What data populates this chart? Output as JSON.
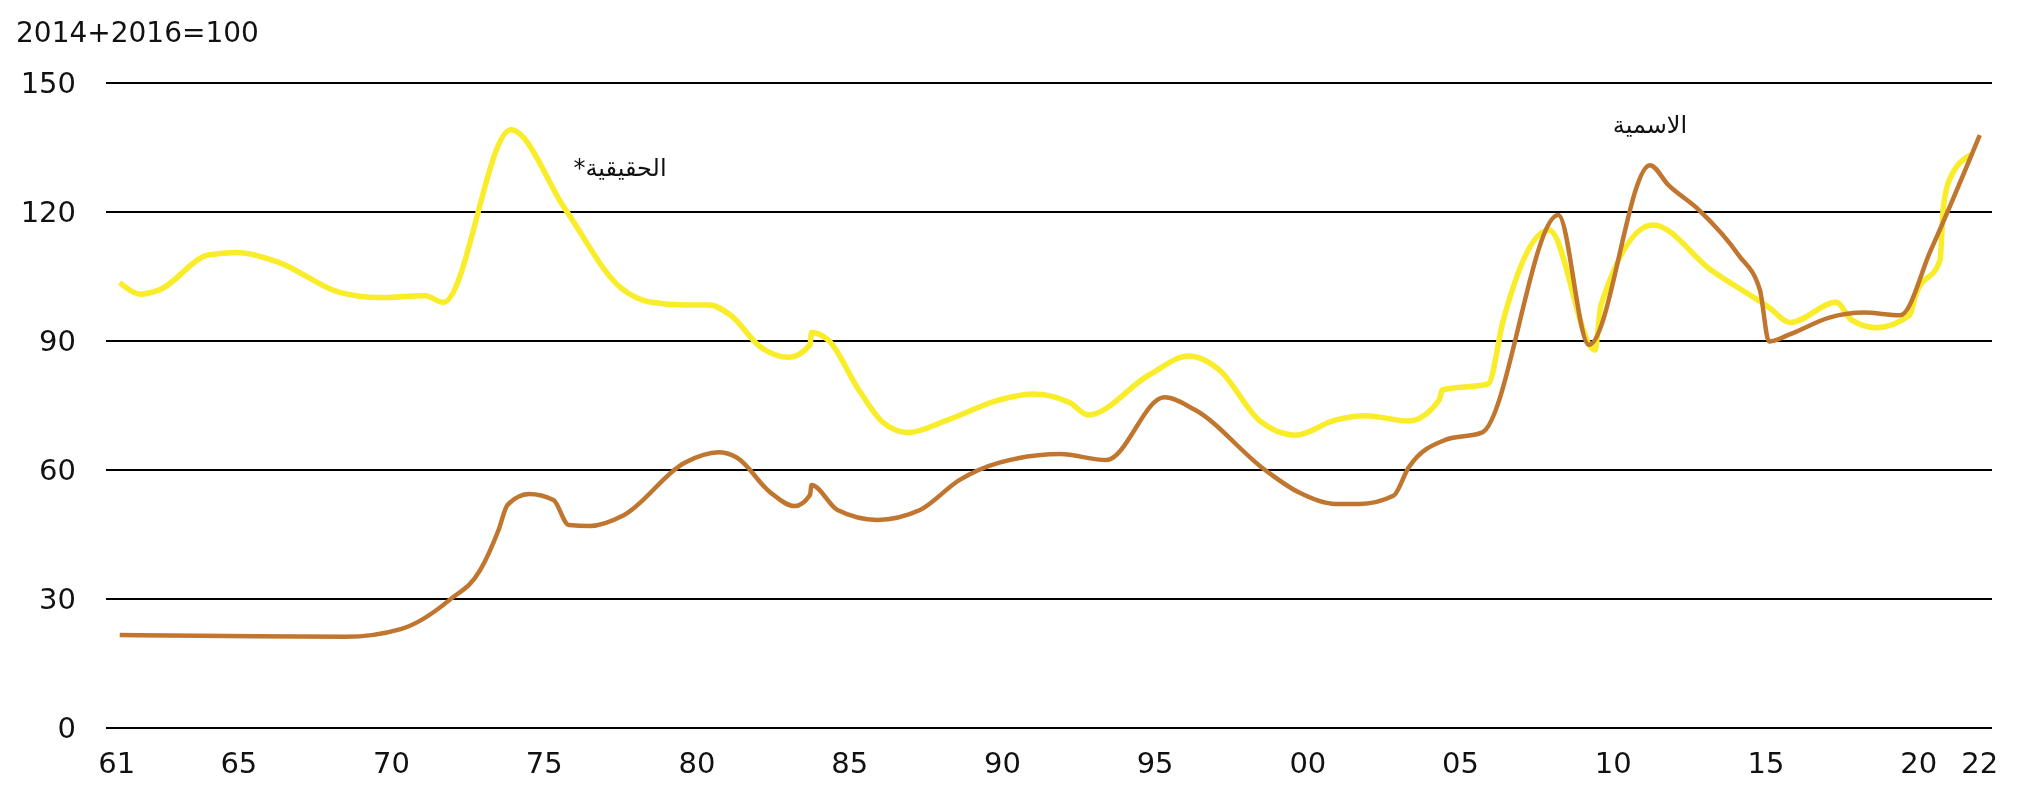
{
  "chart_data": {
    "type": "line",
    "ylabel": "2014+2016=100",
    "xlim": [
      1960.65,
      2022.4
    ],
    "ylim": [
      0,
      150
    ],
    "yticks": [
      0,
      30,
      60,
      90,
      120,
      150
    ],
    "xticks": [
      {
        "value": 1961,
        "label": "61"
      },
      {
        "value": 1965,
        "label": "65"
      },
      {
        "value": 1970,
        "label": "70"
      },
      {
        "value": 1975,
        "label": "75"
      },
      {
        "value": 1980,
        "label": "80"
      },
      {
        "value": 1985,
        "label": "85"
      },
      {
        "value": 1990,
        "label": "90"
      },
      {
        "value": 1995,
        "label": "95"
      },
      {
        "value": 2000,
        "label": "00"
      },
      {
        "value": 2005,
        "label": "05"
      },
      {
        "value": 2010,
        "label": "10"
      },
      {
        "value": 2015,
        "label": "15"
      },
      {
        "value": 2020,
        "label": "20"
      },
      {
        "value": 2022,
        "label": "22"
      }
    ],
    "grid": "y",
    "legend": false,
    "line_style": "solid",
    "marker": "none",
    "series": [
      {
        "name": "الحقيقية*",
        "color": "#f9ec28",
        "x": [
          1961.1,
          1961.8,
          1962.4,
          1964.0,
          1964.9,
          1966.3,
          1968.3,
          1969.6,
          1971.1,
          1971.7,
          1973.9,
          1975.7,
          1977.5,
          1978.5,
          1979.6,
          1980.4,
          1981.1,
          1982.1,
          1983.0,
          1983.7,
          1983.75,
          1984.3,
          1985.3,
          1986.1,
          1986.9,
          1988.2,
          1989.9,
          1991.0,
          1992.2,
          1992.8,
          1994.8,
          1996.1,
          1997.1,
          1998.4,
          1999.6,
          2000.9,
          2001.9,
          2003.3,
          2004.3,
          2004.4,
          2005.9,
          2006.4,
          2007.9,
          2009.4,
          2009.6,
          2011.3,
          2013.2,
          2015.1,
          2015.8,
          2017.3,
          2017.8,
          2018.6,
          2019.7,
          2019.9,
          2020.7,
          2020.8,
          2021.0,
          2021.7
        ],
        "values": [
          103.6,
          100.9,
          101.9,
          110.0,
          110.6,
          108.3,
          101.3,
          100.1,
          100.5,
          99.0,
          139.1,
          120.5,
          102.4,
          99.0,
          98.4,
          98.4,
          96.0,
          88.5,
          86.2,
          89.1,
          92.0,
          90.2,
          78.6,
          71.0,
          68.7,
          71.6,
          76.3,
          77.7,
          75.7,
          72.8,
          82.1,
          86.5,
          83.3,
          71.6,
          68.1,
          71.6,
          72.6,
          71.4,
          76.3,
          78.6,
          80.0,
          94.9,
          115.8,
          87.9,
          98.4,
          117.0,
          106.5,
          97.8,
          94.3,
          99.0,
          94.9,
          93.1,
          96.0,
          100.7,
          108.8,
          120.5,
          127.4,
          133.3
        ]
      },
      {
        "name": "الاسمية",
        "color": "#c0762e",
        "x": [
          1961.1,
          1968.5,
          1970.3,
          1971.9,
          1972.9,
          1973.5,
          1973.8,
          1974.5,
          1975.3,
          1975.8,
          1976.5,
          1977.6,
          1979.6,
          1980.7,
          1981.3,
          1982.4,
          1983.2,
          1983.7,
          1983.75,
          1984.6,
          1985.9,
          1987.3,
          1988.6,
          1989.9,
          1991.9,
          1993.4,
          1995.3,
          1996.3,
          1998.6,
          1999.7,
          2000.9,
          2001.7,
          2002.8,
          2003.3,
          2004.5,
          2005.7,
          2008.2,
          2009.2,
          2011.2,
          2011.8,
          2012.8,
          2014.1,
          2014.8,
          2015.1,
          2015.8,
          2017.1,
          2018.2,
          2019.4,
          2020.4,
          2022
        ],
        "values": [
          21.6,
          21.2,
          23.0,
          29.8,
          36.7,
          46.0,
          51.9,
          54.4,
          53.0,
          47.2,
          47.0,
          49.5,
          61.7,
          64.1,
          62.9,
          54.8,
          51.6,
          54.2,
          56.5,
          50.7,
          48.4,
          50.7,
          57.7,
          61.7,
          63.7,
          62.3,
          76.9,
          74.0,
          60.0,
          54.8,
          52.1,
          52.1,
          54.0,
          60.6,
          67.0,
          68.7,
          119.3,
          89.1,
          130.9,
          126.3,
          120.5,
          110.0,
          101.9,
          89.9,
          91.6,
          95.5,
          96.6,
          96.0,
          111.2,
          137.9
        ]
      }
    ]
  }
}
